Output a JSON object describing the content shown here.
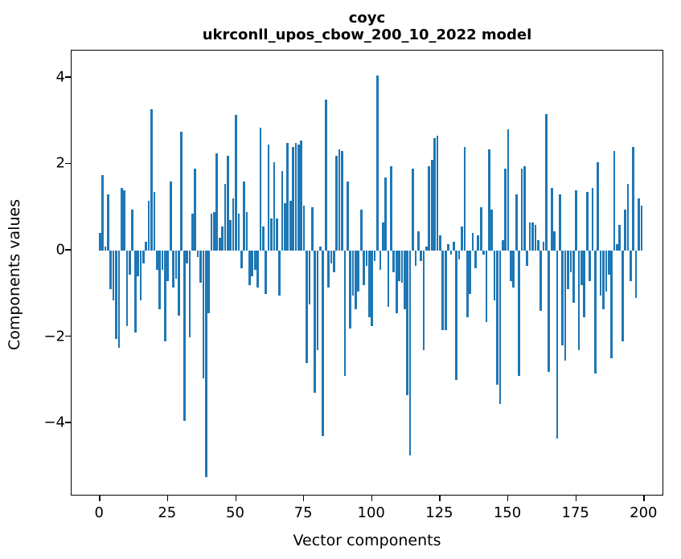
{
  "figure": {
    "title_line1": "coyc",
    "title_line2": "ukrconll_upos_cbow_200_10_2022 model"
  },
  "chart_data": {
    "type": "bar",
    "title": "coyc",
    "subtitle": "ukrconll_upos_cbow_200_10_2022 model",
    "xlabel": "Vector components",
    "ylabel": "Components values",
    "bar_color": "#1f77b4",
    "axis_color": "#000000",
    "grid": false,
    "legend": null,
    "bar_width_units": 0.8,
    "x_ticks": [
      0,
      25,
      50,
      75,
      100,
      125,
      150,
      175,
      200
    ],
    "y_ticks": [
      -4,
      -2,
      0,
      2,
      4
    ],
    "xlim": [
      -10.4,
      207.3
    ],
    "ylim": [
      -5.69,
      4.63
    ],
    "x_start_index": 0,
    "n_components": 200,
    "values": [
      0.4,
      1.75,
      0.1,
      1.3,
      -0.9,
      -1.15,
      -2.05,
      -2.25,
      1.45,
      1.4,
      -1.75,
      -0.55,
      0.95,
      -1.9,
      -0.6,
      -1.15,
      -0.3,
      0.2,
      1.15,
      3.27,
      1.35,
      -0.45,
      -1.35,
      -0.45,
      -2.1,
      -0.7,
      1.6,
      -0.85,
      -0.65,
      -1.5,
      2.75,
      -3.95,
      -0.3,
      -2.0,
      0.85,
      1.9,
      -0.15,
      -0.75,
      -2.95,
      -5.25,
      -1.45,
      0.85,
      0.9,
      2.25,
      0.3,
      0.55,
      1.55,
      2.2,
      0.7,
      1.2,
      3.15,
      0.85,
      -0.4,
      1.6,
      0.9,
      -0.8,
      -0.6,
      -0.45,
      -0.85,
      2.85,
      0.55,
      -1.0,
      2.45,
      0.75,
      2.05,
      0.75,
      -1.05,
      1.85,
      1.1,
      2.5,
      1.15,
      2.4,
      2.5,
      2.45,
      2.55,
      1.05,
      -2.6,
      -1.25,
      1.0,
      -3.3,
      -2.3,
      0.1,
      -4.3,
      3.5,
      -0.85,
      -0.3,
      -0.5,
      2.2,
      2.35,
      2.3,
      -2.9,
      1.6,
      -1.8,
      -1.05,
      -1.35,
      -0.95,
      0.95,
      -0.8,
      -0.35,
      -1.55,
      -1.75,
      -0.25,
      4.05,
      -0.45,
      0.65,
      1.7,
      -1.3,
      1.95,
      -0.5,
      -1.45,
      -0.7,
      -0.75,
      -1.35,
      -3.35,
      -4.75,
      1.9,
      -0.35,
      0.45,
      -0.25,
      -2.3,
      0.1,
      1.95,
      2.1,
      2.6,
      2.65,
      0.35,
      -1.85,
      -1.85,
      0.15,
      -0.1,
      0.2,
      -3.0,
      -0.2,
      0.55,
      2.4,
      -1.55,
      -1.0,
      0.4,
      -0.4,
      0.35,
      1.0,
      -0.1,
      -1.65,
      2.35,
      0.95,
      -1.15,
      -3.1,
      -3.55,
      0.25,
      1.9,
      2.8,
      -0.7,
      -0.85,
      1.3,
      -2.9,
      1.9,
      1.95,
      -0.35,
      0.65,
      0.65,
      0.6,
      0.25,
      -1.4,
      0.2,
      3.17,
      -2.8,
      1.45,
      0.45,
      -4.35,
      1.3,
      -2.2,
      -2.55,
      -0.9,
      -0.5,
      -1.2,
      1.4,
      -2.3,
      -0.8,
      -1.55,
      1.35,
      -0.7,
      1.45,
      -2.85,
      2.05,
      -1.05,
      -1.35,
      -0.95,
      -0.55,
      -2.5,
      2.3,
      0.15,
      0.6,
      -2.1,
      0.95,
      1.55,
      -0.7,
      2.4,
      -1.1,
      1.2,
      1.05
    ]
  }
}
